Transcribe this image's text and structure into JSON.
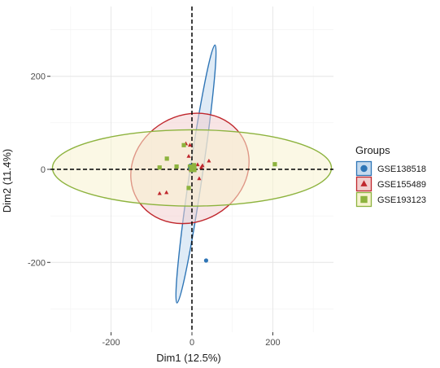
{
  "chart_data": {
    "type": "scatter",
    "xlabel": "Dim1 (12.5%)",
    "ylabel": "Dim2 (11.4%)",
    "xlim": [
      -350,
      350
    ],
    "ylim": [
      -350,
      350
    ],
    "x_ticks": [
      -200,
      0,
      200
    ],
    "y_ticks": [
      -200,
      0,
      200
    ],
    "grid": true,
    "reference_lines": [
      "x=0 dashed",
      "y=0 dashed"
    ],
    "legend": {
      "title": "Groups",
      "position": "right"
    },
    "series": [
      {
        "name": "GSE138518",
        "marker": "circle",
        "color": "#2E75B6",
        "fill": "#C5DAEE",
        "points": [
          [
            -2,
            2
          ],
          [
            0,
            6
          ],
          [
            1,
            -2
          ],
          [
            3,
            4
          ],
          [
            -3,
            0
          ],
          [
            -4,
            8
          ],
          [
            35,
            -196
          ]
        ],
        "centroid": [
          0,
          2
        ],
        "ellipse": {
          "cx": 10,
          "cy": -10,
          "rx": 322,
          "ry": 14,
          "angle_deg": -81.6
        }
      },
      {
        "name": "GSE155489",
        "marker": "triangle",
        "color": "#C0272D",
        "fill": "#F2CFCF",
        "points": [
          [
            -80,
            -52
          ],
          [
            -63,
            -50
          ],
          [
            -15,
            55
          ],
          [
            -5,
            52
          ],
          [
            14,
            10
          ],
          [
            23,
            4
          ],
          [
            26,
            8
          ],
          [
            42,
            18
          ],
          [
            18,
            -20
          ],
          [
            -8,
            28
          ],
          [
            6,
            2
          ]
        ],
        "centroid": [
          0,
          2
        ],
        "ellipse": {
          "cx": -5,
          "cy": 2,
          "rx": 151,
          "ry": 114,
          "angle_deg": -30
        }
      },
      {
        "name": "GSE193123",
        "marker": "square",
        "color": "#8DB33E",
        "fill": "#F7F3D0",
        "points": [
          [
            -80,
            4
          ],
          [
            -62,
            23
          ],
          [
            -38,
            6
          ],
          [
            -20,
            52
          ],
          [
            -5,
            6
          ],
          [
            5,
            9
          ],
          [
            205,
            11
          ],
          [
            -8,
            -40
          ],
          [
            2,
            3
          ]
        ],
        "centroid": [
          2,
          2
        ],
        "ellipse": {
          "cx": 0,
          "cy": 3,
          "rx": 345,
          "ry": 82,
          "angle_deg": 0
        }
      }
    ]
  }
}
